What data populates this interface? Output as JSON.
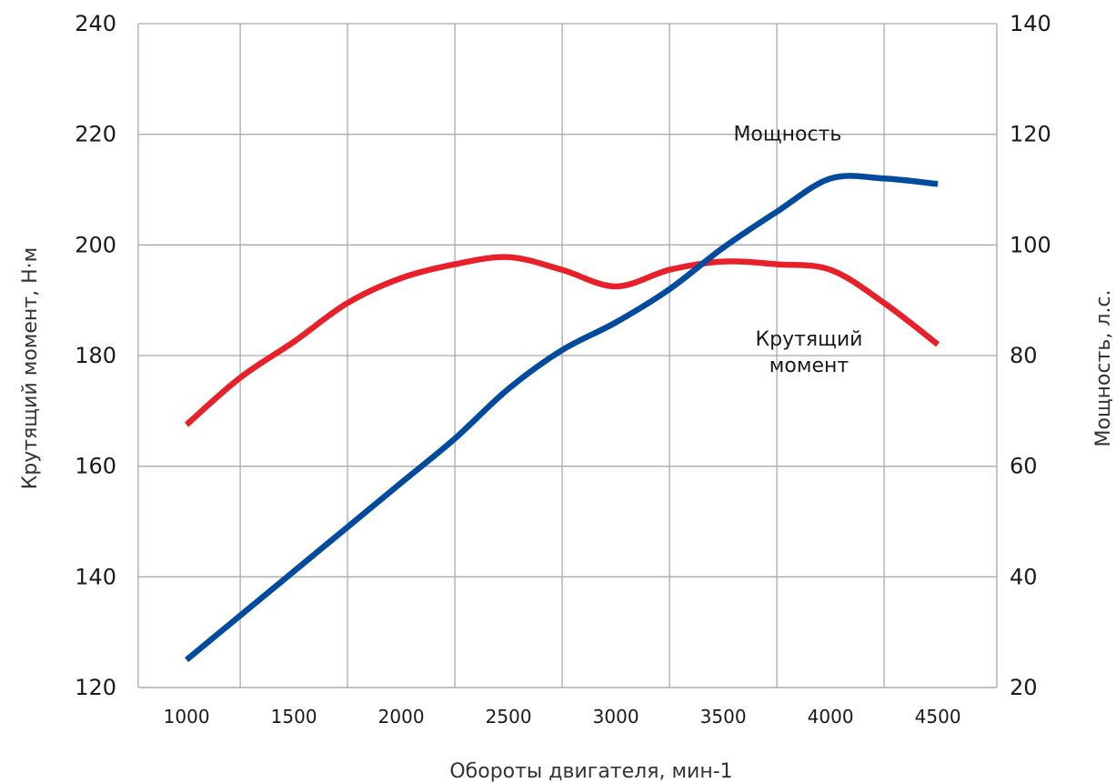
{
  "chart_data": {
    "type": "line",
    "title": "",
    "xlabel": "Обороты двигателя, мин-1",
    "ylabel_left": "Крутящий момент, Н·м",
    "ylabel_right": "Мощность, л.с.",
    "x_ticks": [
      "1000",
      "1500",
      "2000",
      "2500",
      "3000",
      "3500",
      "4000",
      "4500"
    ],
    "y_left_ticks": [
      "120",
      "140",
      "160",
      "180",
      "200",
      "220",
      "240"
    ],
    "y_right_ticks": [
      "20",
      "40",
      "60",
      "80",
      "100",
      "120",
      "140"
    ],
    "xlim": [
      775,
      4775
    ],
    "ylim_left": [
      120,
      240
    ],
    "ylim_right": [
      20,
      140
    ],
    "grid": true,
    "series": [
      {
        "name": "Крутящий момент",
        "axis": "left",
        "color": "#e8202a",
        "x": [
          1000,
          1250,
          1500,
          1750,
          2000,
          2250,
          2500,
          2750,
          3000,
          3250,
          3500,
          3750,
          4000,
          4250,
          4500
        ],
        "values": [
          167.5,
          176,
          182.5,
          189.5,
          194,
          196.5,
          197.8,
          195.5,
          192.5,
          195.5,
          197,
          196.5,
          195.5,
          189.5,
          182
        ]
      },
      {
        "name": "Мощность",
        "axis": "right",
        "color": "#004b9e",
        "x": [
          1000,
          1250,
          1500,
          1750,
          2000,
          2250,
          2500,
          2750,
          3000,
          3250,
          3500,
          3750,
          4000,
          4250,
          4500
        ],
        "values": [
          25,
          33,
          41,
          49,
          57,
          65,
          74,
          81,
          86,
          92,
          99.5,
          106,
          112,
          112,
          111
        ]
      }
    ],
    "annotations": [
      {
        "text": "Мощность",
        "series": "Мощность"
      },
      {
        "text": "Крутящий\nмомент",
        "series": "Крутящий момент"
      }
    ]
  }
}
